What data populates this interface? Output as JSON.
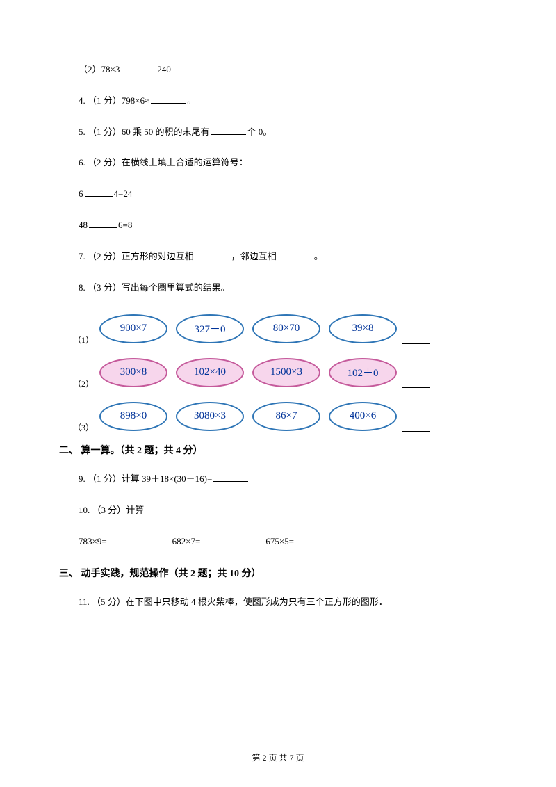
{
  "q_sub2": "（2）78×3",
  "q_sub2_after": "240",
  "q4": "4. （1 分）798×6≈",
  "q4_after": "。",
  "q5_a": "5. （1 分）60 乘 50 的积的末尾有",
  "q5_b": "个 0。",
  "q6": "6. （2 分）在横线上填上合适的运算符号：",
  "q6_eq1_a": "6",
  "q6_eq1_b": "4=24",
  "q6_eq2_a": "48",
  "q6_eq2_b": "6=8",
  "q7_a": "7. （2 分）正方形的对边互相",
  "q7_b": "，邻边互相",
  "q7_c": "。",
  "q8": "8. （3 分）写出每个圈里算式的结果。",
  "ovals": {
    "row1": {
      "label": "（1）",
      "items": [
        "900×7",
        "327－0",
        "80×70",
        "39×8"
      ],
      "border": "#2e75b6",
      "fill": "#ffffff"
    },
    "row2": {
      "label": "（2）",
      "items": [
        "300×8",
        "102×40",
        "1500×3",
        "102＋0"
      ],
      "border": "#c55a9b",
      "fill": "#f7d6ec"
    },
    "row3": {
      "label": "（3）",
      "items": [
        "898×0",
        "3080×3",
        "86×7",
        "400×6"
      ],
      "border": "#2e75b6",
      "fill": "#ffffff"
    }
  },
  "section2": "二、 算一算。（共 2 题；共 4 分）",
  "q9_a": "9. （1 分）计算 39＋18×(30－16)=",
  "q10": "10. （3 分）计算",
  "q10_items": [
    "783×9=",
    "682×7=",
    "675×5="
  ],
  "section3": "三、 动手实践，规范操作（共 2 题；共 10 分）",
  "q11": "11. （5 分）在下图中只移动 4 根火柴棒，使图形成为只有三个正方形的图形．",
  "footer": "第 2 页 共 7 页"
}
